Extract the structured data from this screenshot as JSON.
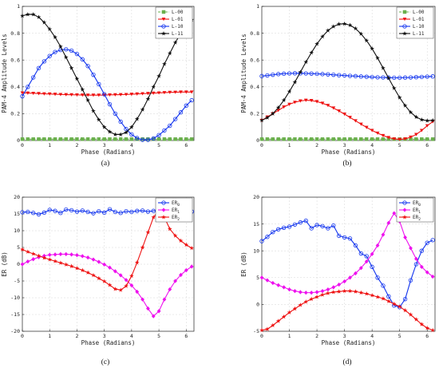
{
  "chart_data": [
    {
      "type": "line",
      "caption": "(a)",
      "xlabel": "Phase (Radians)",
      "ylabel": "PAM-4 Amplitude Levels",
      "xlim": [
        0,
        6.283
      ],
      "ylim": [
        0,
        1
      ],
      "xticks": [
        "0",
        "1",
        "2",
        "3",
        "4",
        "5",
        "6"
      ],
      "yticks": [
        "0",
        "0.2",
        "0.4",
        "0.6",
        "0.8",
        "1"
      ],
      "grid": true,
      "legend_position": "top-right",
      "x": [
        0,
        0.2,
        0.4,
        0.6,
        0.8,
        1.0,
        1.2,
        1.4,
        1.6,
        1.8,
        2.0,
        2.2,
        2.4,
        2.6,
        2.8,
        3.0,
        3.2,
        3.4,
        3.6,
        3.8,
        4.0,
        4.2,
        4.4,
        4.6,
        4.8,
        5.0,
        5.2,
        5.4,
        5.6,
        5.8,
        6.0,
        6.2
      ],
      "series": [
        {
          "name": "L-00",
          "color": "#6ab04c",
          "marker": "square",
          "dash": "3,1.5",
          "values": [
            0.01,
            0.01,
            0.01,
            0.01,
            0.01,
            0.01,
            0.01,
            0.01,
            0.01,
            0.01,
            0.01,
            0.01,
            0.01,
            0.01,
            0.01,
            0.01,
            0.01,
            0.01,
            0.01,
            0.01,
            0.01,
            0.01,
            0.01,
            0.01,
            0.01,
            0.01,
            0.01,
            0.01,
            0.01,
            0.01,
            0.01,
            0.01
          ]
        },
        {
          "name": "L-01",
          "color": "#ee1111",
          "marker": "triangle-down",
          "values": [
            0.355,
            0.354,
            0.352,
            0.35,
            0.348,
            0.347,
            0.345,
            0.343,
            0.342,
            0.341,
            0.34,
            0.339,
            0.338,
            0.338,
            0.338,
            0.339,
            0.34,
            0.341,
            0.342,
            0.343,
            0.345,
            0.347,
            0.349,
            0.351,
            0.353,
            0.355,
            0.357,
            0.359,
            0.36,
            0.361,
            0.361,
            0.361
          ]
        },
        {
          "name": "L-10",
          "color": "#1133ee",
          "marker": "circle",
          "values": [
            0.33,
            0.4,
            0.47,
            0.54,
            0.59,
            0.63,
            0.66,
            0.675,
            0.68,
            0.67,
            0.645,
            0.605,
            0.555,
            0.49,
            0.42,
            0.345,
            0.27,
            0.2,
            0.14,
            0.085,
            0.045,
            0.018,
            0.005,
            0.005,
            0.015,
            0.04,
            0.075,
            0.11,
            0.16,
            0.21,
            0.26,
            0.3
          ]
        },
        {
          "name": "L-11",
          "color": "#111111",
          "marker": "star",
          "values": [
            0.93,
            0.94,
            0.94,
            0.92,
            0.88,
            0.83,
            0.77,
            0.7,
            0.62,
            0.54,
            0.46,
            0.38,
            0.3,
            0.22,
            0.155,
            0.1,
            0.065,
            0.045,
            0.045,
            0.06,
            0.1,
            0.16,
            0.23,
            0.31,
            0.4,
            0.48,
            0.57,
            0.65,
            0.73,
            0.8,
            0.86,
            0.9
          ]
        }
      ]
    },
    {
      "type": "line",
      "caption": "(b)",
      "xlabel": "Phase (Radians)",
      "ylabel": "PAM-4 Amplitude Levels",
      "xlim": [
        0,
        6.283
      ],
      "ylim": [
        0,
        1
      ],
      "xticks": [
        "0",
        "1",
        "2",
        "3",
        "4",
        "5",
        "6"
      ],
      "yticks": [
        "0",
        "0.2",
        "0.4",
        "0.6",
        "0.8",
        "1"
      ],
      "grid": true,
      "legend_position": "top-right",
      "x": [
        0,
        0.2,
        0.4,
        0.6,
        0.8,
        1.0,
        1.2,
        1.4,
        1.6,
        1.8,
        2.0,
        2.2,
        2.4,
        2.6,
        2.8,
        3.0,
        3.2,
        3.4,
        3.6,
        3.8,
        4.0,
        4.2,
        4.4,
        4.6,
        4.8,
        5.0,
        5.2,
        5.4,
        5.6,
        5.8,
        6.0,
        6.2
      ],
      "series": [
        {
          "name": "L-00",
          "color": "#6ab04c",
          "marker": "square",
          "dash": "3,1.5",
          "values": [
            0.01,
            0.01,
            0.01,
            0.01,
            0.01,
            0.01,
            0.01,
            0.01,
            0.01,
            0.01,
            0.01,
            0.01,
            0.01,
            0.01,
            0.01,
            0.01,
            0.01,
            0.01,
            0.01,
            0.01,
            0.01,
            0.01,
            0.01,
            0.01,
            0.01,
            0.01,
            0.01,
            0.01,
            0.01,
            0.01,
            0.01,
            0.01
          ]
        },
        {
          "name": "L-01",
          "color": "#ee1111",
          "marker": "triangle-down",
          "values": [
            0.15,
            0.175,
            0.2,
            0.225,
            0.25,
            0.27,
            0.285,
            0.295,
            0.3,
            0.298,
            0.29,
            0.278,
            0.262,
            0.242,
            0.22,
            0.197,
            0.172,
            0.147,
            0.122,
            0.098,
            0.075,
            0.055,
            0.037,
            0.022,
            0.012,
            0.008,
            0.012,
            0.025,
            0.045,
            0.075,
            0.11,
            0.14
          ]
        },
        {
          "name": "L-10",
          "color": "#1133ee",
          "marker": "circle",
          "values": [
            0.48,
            0.485,
            0.49,
            0.495,
            0.498,
            0.5,
            0.501,
            0.501,
            0.5,
            0.499,
            0.497,
            0.495,
            0.493,
            0.49,
            0.487,
            0.485,
            0.482,
            0.48,
            0.477,
            0.475,
            0.473,
            0.471,
            0.47,
            0.469,
            0.468,
            0.468,
            0.469,
            0.47,
            0.472,
            0.474,
            0.476,
            0.478
          ]
        },
        {
          "name": "L-11",
          "color": "#111111",
          "marker": "star",
          "values": [
            0.15,
            0.17,
            0.2,
            0.245,
            0.3,
            0.365,
            0.435,
            0.51,
            0.585,
            0.655,
            0.72,
            0.775,
            0.82,
            0.85,
            0.868,
            0.87,
            0.86,
            0.835,
            0.795,
            0.745,
            0.685,
            0.615,
            0.54,
            0.465,
            0.39,
            0.32,
            0.26,
            0.21,
            0.175,
            0.155,
            0.148,
            0.15
          ]
        }
      ]
    },
    {
      "type": "line",
      "caption": "(c)",
      "xlabel": "Phase (Radians)",
      "ylabel": "ER (dB)",
      "xlim": [
        0,
        6.283
      ],
      "ylim": [
        -20,
        20
      ],
      "xticks": [
        "0",
        "1",
        "2",
        "3",
        "4",
        "5",
        "6"
      ],
      "yticks": [
        "-20",
        "-15",
        "-10",
        "-5",
        "0",
        "5",
        "10",
        "15",
        "20"
      ],
      "grid": true,
      "legend_position": "top-right",
      "x": [
        0,
        0.2,
        0.4,
        0.6,
        0.8,
        1.0,
        1.2,
        1.4,
        1.6,
        1.8,
        2.0,
        2.2,
        2.4,
        2.6,
        2.8,
        3.0,
        3.2,
        3.4,
        3.6,
        3.8,
        4.0,
        4.2,
        4.4,
        4.6,
        4.8,
        5.0,
        5.2,
        5.4,
        5.6,
        5.8,
        6.0,
        6.2
      ],
      "series": [
        {
          "name": "ER",
          "subscript": "0",
          "color": "#1133ee",
          "marker": "circle",
          "values": [
            15.5,
            15.6,
            15.3,
            14.9,
            15.4,
            16.2,
            15.9,
            15.3,
            16.3,
            16.1,
            15.7,
            16.0,
            15.6,
            15.2,
            15.8,
            15.4,
            16.4,
            15.6,
            15.3,
            15.8,
            15.6,
            15.9,
            16.0,
            15.7,
            15.9,
            16.2,
            15.5,
            15.8,
            16.0,
            15.6,
            15.3,
            15.7
          ]
        },
        {
          "name": "ER",
          "subscript": "1",
          "color": "#ee11ee",
          "marker": "diamond",
          "values": [
            0,
            0.8,
            1.5,
            2.1,
            2.5,
            2.8,
            2.9,
            3.0,
            3.0,
            2.9,
            2.7,
            2.4,
            2.0,
            1.4,
            0.7,
            -0.1,
            -1.0,
            -2.1,
            -3.3,
            -4.7,
            -6.3,
            -8.2,
            -10.5,
            -13.2,
            -15.5,
            -14.0,
            -10.5,
            -7.5,
            -5.0,
            -3.2,
            -1.8,
            -0.7
          ]
        },
        {
          "name": "ER",
          "subscript": "2",
          "color": "#ee1111",
          "marker": "star",
          "values": [
            4.4,
            3.7,
            3.1,
            2.5,
            1.9,
            1.4,
            0.9,
            0.4,
            -0.1,
            -0.6,
            -1.2,
            -1.8,
            -2.5,
            -3.3,
            -4.2,
            -5.1,
            -6.2,
            -7.4,
            -7.7,
            -6.5,
            -3.5,
            0.5,
            5.0,
            9.5,
            14.0,
            16.0,
            14.0,
            10.5,
            8.5,
            7.0,
            5.8,
            4.8
          ]
        }
      ]
    },
    {
      "type": "line",
      "caption": "(d)",
      "xlabel": "Phase (Radians)",
      "ylabel": "ER (dB)",
      "xlim": [
        0,
        6.283
      ],
      "ylim": [
        -5,
        20
      ],
      "xticks": [
        "0",
        "1",
        "2",
        "3",
        "4",
        "5",
        "6"
      ],
      "yticks": [
        "-5",
        "0",
        "5",
        "10",
        "15",
        "20"
      ],
      "grid": true,
      "legend_position": "top-right",
      "x": [
        0,
        0.2,
        0.4,
        0.6,
        0.8,
        1.0,
        1.2,
        1.4,
        1.6,
        1.8,
        2.0,
        2.2,
        2.4,
        2.6,
        2.8,
        3.0,
        3.2,
        3.4,
        3.6,
        3.8,
        4.0,
        4.2,
        4.4,
        4.6,
        4.8,
        5.0,
        5.2,
        5.4,
        5.6,
        5.8,
        6.0,
        6.2
      ],
      "series": [
        {
          "name": "ER",
          "subscript": "0",
          "color": "#1133ee",
          "marker": "circle",
          "values": [
            11.8,
            12.6,
            13.5,
            14.0,
            14.3,
            14.5,
            14.9,
            15.3,
            15.6,
            14.2,
            14.8,
            14.6,
            14.2,
            14.7,
            12.8,
            12.5,
            12.3,
            11.0,
            9.5,
            9.0,
            7.0,
            5.0,
            3.5,
            1.5,
            -0.2,
            -0.5,
            1.0,
            4.5,
            7.5,
            10.0,
            11.5,
            12.0
          ]
        },
        {
          "name": "ER",
          "subscript": "1",
          "color": "#ee11ee",
          "marker": "diamond",
          "values": [
            5.0,
            4.5,
            4.0,
            3.6,
            3.2,
            2.8,
            2.5,
            2.3,
            2.2,
            2.2,
            2.3,
            2.5,
            2.8,
            3.2,
            3.7,
            4.3,
            5.0,
            5.8,
            6.8,
            8.0,
            9.4,
            11.0,
            13.0,
            15.2,
            17.0,
            15.5,
            12.5,
            10.5,
            8.5,
            7.0,
            6.0,
            5.2
          ]
        },
        {
          "name": "ER",
          "subscript": "2",
          "color": "#ee1111",
          "marker": "star",
          "values": [
            -4.8,
            -4.6,
            -3.9,
            -3.1,
            -2.3,
            -1.5,
            -0.8,
            -0.1,
            0.5,
            1.0,
            1.4,
            1.8,
            2.1,
            2.3,
            2.4,
            2.5,
            2.5,
            2.4,
            2.2,
            2.0,
            1.7,
            1.4,
            1.1,
            0.6,
            0.1,
            -0.4,
            -1.1,
            -1.9,
            -2.8,
            -3.7,
            -4.4,
            -4.8
          ]
        }
      ]
    }
  ]
}
